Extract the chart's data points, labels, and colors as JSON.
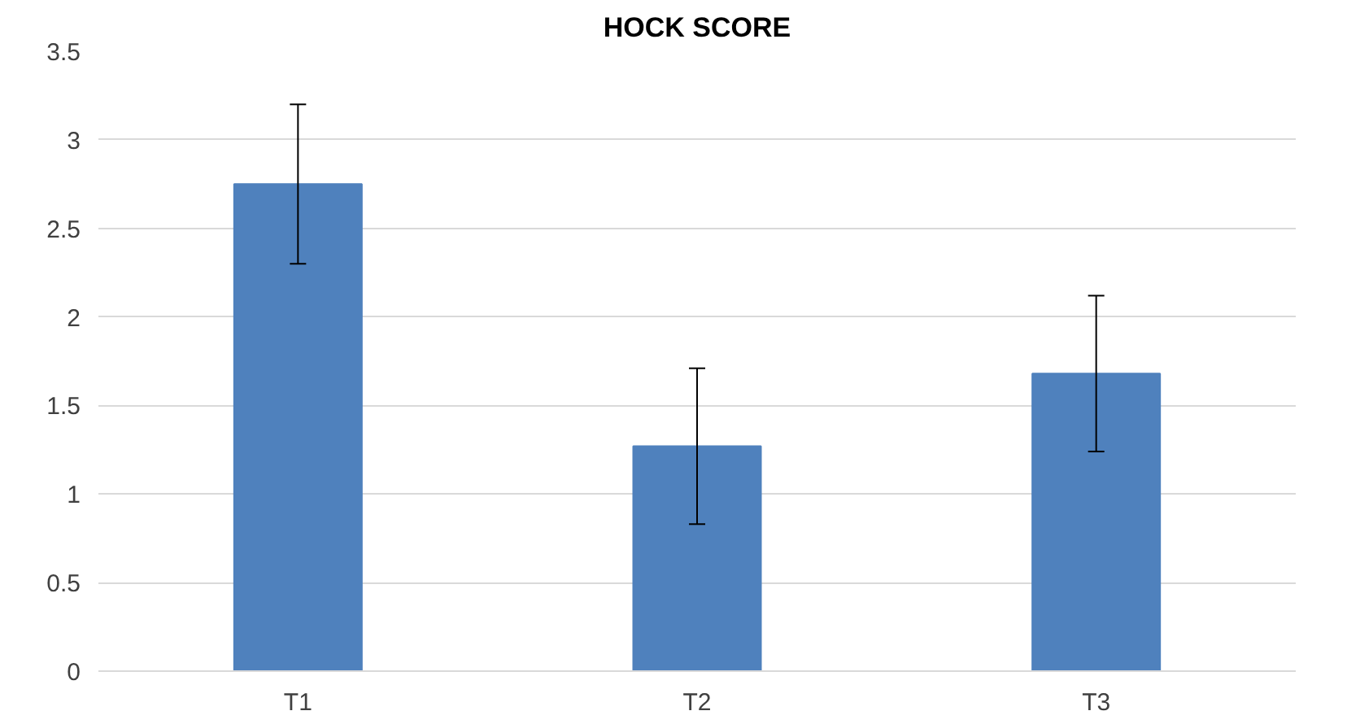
{
  "chart_data": {
    "type": "bar",
    "title": "HOCK SCORE",
    "categories": [
      "T1",
      "T2",
      "T3"
    ],
    "values": [
      2.75,
      1.27,
      1.68
    ],
    "errors": [
      0.45,
      0.44,
      0.44
    ],
    "color": "#4f81bd",
    "ylim": [
      0,
      3.5
    ],
    "yticks": [
      0,
      0.5,
      1,
      1.5,
      2,
      2.5,
      3,
      3.5
    ],
    "grid": "y"
  }
}
